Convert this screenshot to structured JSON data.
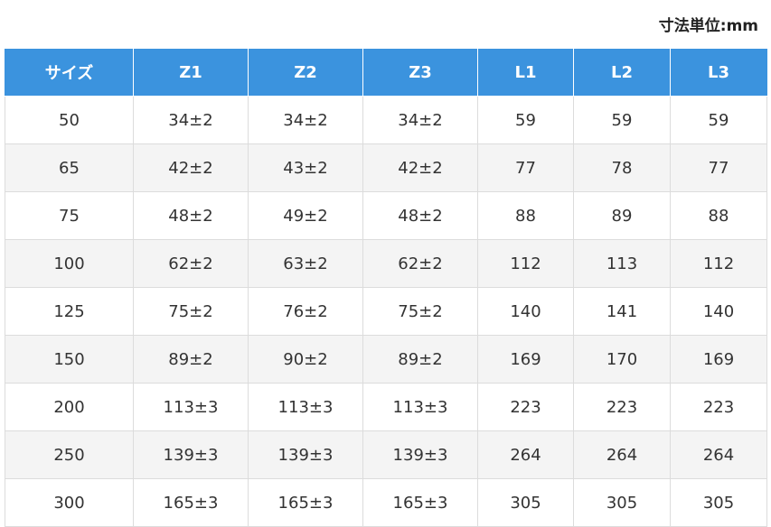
{
  "unit_label": "寸法単位:mm",
  "table": {
    "header": [
      "サイズ",
      "Z1",
      "Z2",
      "Z3",
      "L1",
      "L2",
      "L3"
    ],
    "rows": [
      [
        "50",
        "34±2",
        "34±2",
        "34±2",
        "59",
        "59",
        "59"
      ],
      [
        "65",
        "42±2",
        "43±2",
        "42±2",
        "77",
        "78",
        "77"
      ],
      [
        "75",
        "48±2",
        "49±2",
        "48±2",
        "88",
        "89",
        "88"
      ],
      [
        "100",
        "62±2",
        "63±2",
        "62±2",
        "112",
        "113",
        "112"
      ],
      [
        "125",
        "75±2",
        "76±2",
        "75±2",
        "140",
        "141",
        "140"
      ],
      [
        "150",
        "89±2",
        "90±2",
        "89±2",
        "169",
        "170",
        "169"
      ],
      [
        "200",
        "113±3",
        "113±3",
        "113±3",
        "223",
        "223",
        "223"
      ],
      [
        "250",
        "139±3",
        "139±3",
        "139±3",
        "264",
        "264",
        "264"
      ],
      [
        "300",
        "165±3",
        "165±3",
        "165±3",
        "305",
        "305",
        "305"
      ]
    ]
  }
}
